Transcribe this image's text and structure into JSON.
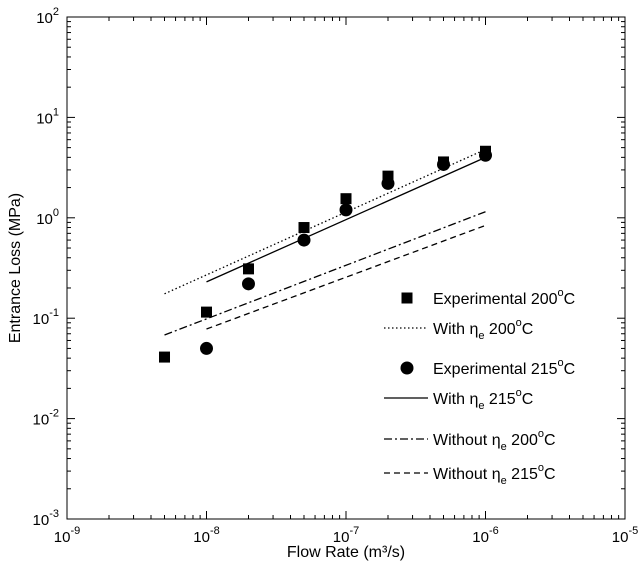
{
  "chart_data": {
    "type": "scatter",
    "xscale": "log",
    "yscale": "log",
    "xlim": [
      1e-09,
      1e-05
    ],
    "ylim": [
      0.001,
      100
    ],
    "grid": false,
    "legend_position": "bottom-right",
    "xlabel": "Flow Rate (m³/s)",
    "ylabel": "Entrance Loss (MPa)",
    "x_ticks": [
      {
        "value": 1e-09,
        "base": "10",
        "exp": "-9"
      },
      {
        "value": 1e-08,
        "base": "10",
        "exp": "-8"
      },
      {
        "value": 1e-07,
        "base": "10",
        "exp": "-7"
      },
      {
        "value": 1e-06,
        "base": "10",
        "exp": "-6"
      },
      {
        "value": 1e-05,
        "base": "10",
        "exp": "-5"
      }
    ],
    "y_ticks": [
      {
        "value": 0.001,
        "base": "10",
        "exp": "-3"
      },
      {
        "value": 0.01,
        "base": "10",
        "exp": "-2"
      },
      {
        "value": 0.1,
        "base": "10",
        "exp": "-1"
      },
      {
        "value": 1,
        "base": "10",
        "exp": "0"
      },
      {
        "value": 10,
        "base": "10",
        "exp": "1"
      },
      {
        "value": 100,
        "base": "10",
        "exp": "2"
      }
    ],
    "series": [
      {
        "name": "Experimental 200°C",
        "legend": {
          "pre": "Experimental 200",
          "sub": "",
          "post": "",
          "sup": "o",
          "tail": "C"
        },
        "style": "square-marker",
        "points": [
          {
            "x": 5e-09,
            "y": 0.041
          },
          {
            "x": 1e-08,
            "y": 0.115
          },
          {
            "x": 2e-08,
            "y": 0.31
          },
          {
            "x": 5e-08,
            "y": 0.8
          },
          {
            "x": 1e-07,
            "y": 1.55
          },
          {
            "x": 2e-07,
            "y": 2.6
          },
          {
            "x": 5e-07,
            "y": 3.6
          },
          {
            "x": 1e-06,
            "y": 4.6
          }
        ]
      },
      {
        "name": "With ηe 200°C",
        "legend": {
          "pre": "With η",
          "sub": "e",
          "post": " 200",
          "sup": "o",
          "tail": "C"
        },
        "style": "dotted",
        "points": [
          {
            "x": 5e-09,
            "y": 0.175
          },
          {
            "x": 1e-06,
            "y": 4.8
          }
        ]
      },
      {
        "name": "Experimental 215°C",
        "legend": {
          "pre": "Experimental 215",
          "sub": "",
          "post": "",
          "sup": "o",
          "tail": "C"
        },
        "style": "circle-marker",
        "points": [
          {
            "x": 1e-08,
            "y": 0.05
          },
          {
            "x": 2e-08,
            "y": 0.22
          },
          {
            "x": 5e-08,
            "y": 0.6
          },
          {
            "x": 1e-07,
            "y": 1.2
          },
          {
            "x": 2e-07,
            "y": 2.2
          },
          {
            "x": 5e-07,
            "y": 3.4
          },
          {
            "x": 1e-06,
            "y": 4.2
          }
        ]
      },
      {
        "name": "With ηe 215°C",
        "legend": {
          "pre": "With η",
          "sub": "e",
          "post": " 215",
          "sup": "o",
          "tail": "C"
        },
        "style": "solid",
        "points": [
          {
            "x": 1e-08,
            "y": 0.23
          },
          {
            "x": 1e-06,
            "y": 4.0
          }
        ]
      },
      {
        "name": "Without ηe 200°C",
        "legend": {
          "pre": "Without η",
          "sub": "e",
          "post": " 200",
          "sup": "o",
          "tail": "C"
        },
        "style": "dashdot",
        "points": [
          {
            "x": 5e-09,
            "y": 0.068
          },
          {
            "x": 1e-06,
            "y": 1.15
          }
        ]
      },
      {
        "name": "Without ηe 215°C",
        "legend": {
          "pre": "Without η",
          "sub": "e",
          "post": " 215",
          "sup": "o",
          "tail": "C"
        },
        "style": "dashed",
        "points": [
          {
            "x": 1e-08,
            "y": 0.078
          },
          {
            "x": 1e-06,
            "y": 0.84
          }
        ]
      }
    ]
  }
}
